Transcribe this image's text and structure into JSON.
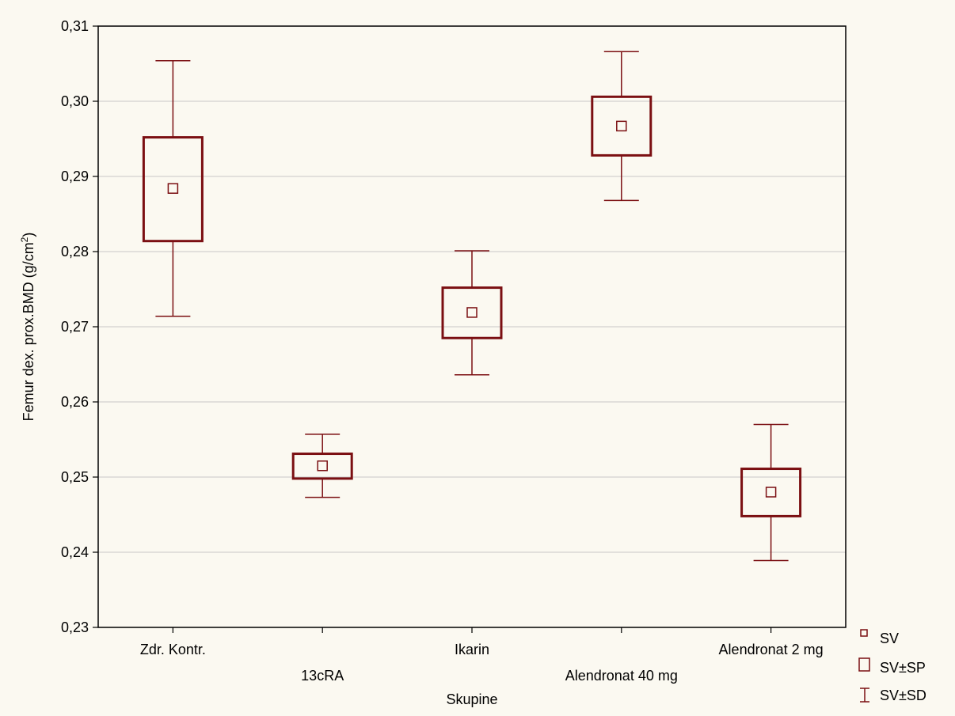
{
  "chart_data": {
    "type": "box",
    "title": "",
    "xlabel": "Skupine",
    "ylabel": "Femur dex. prox.BMD (g/cm²)",
    "ylabel_main": "Femur dex. prox.BMD (g/cm",
    "ylabel_sup": "2",
    "ylabel_close": ")",
    "ylim": [
      0.23,
      0.31
    ],
    "yticks": [
      "0,23",
      "0,24",
      "0,25",
      "0,26",
      "0,27",
      "0,28",
      "0,29",
      "0,30",
      "0,31"
    ],
    "grid": true,
    "legend_position": "bottom-right",
    "color": "#7b0f12",
    "background": "#fbf9f1",
    "categories": [
      "Zdr. Kontr.",
      "13cRA",
      "Ikarin",
      "Alendronat 40 mg",
      "Alendronat 2 mg"
    ],
    "series": [
      {
        "name": "SV",
        "values": [
          0.2884,
          0.2515,
          0.2719,
          0.2967,
          0.248
        ]
      },
      {
        "name": "SV±SP",
        "values": [
          [
            0.2814,
            0.2952
          ],
          [
            0.2498,
            0.2531
          ],
          [
            0.2685,
            0.2752
          ],
          [
            0.2928,
            0.3006
          ],
          [
            0.2448,
            0.2511
          ]
        ]
      },
      {
        "name": "SV±SD",
        "values": [
          [
            0.2714,
            0.3054
          ],
          [
            0.2473,
            0.2557
          ],
          [
            0.2636,
            0.2801
          ],
          [
            0.2868,
            0.3066
          ],
          [
            0.2389,
            0.257
          ]
        ]
      }
    ]
  }
}
